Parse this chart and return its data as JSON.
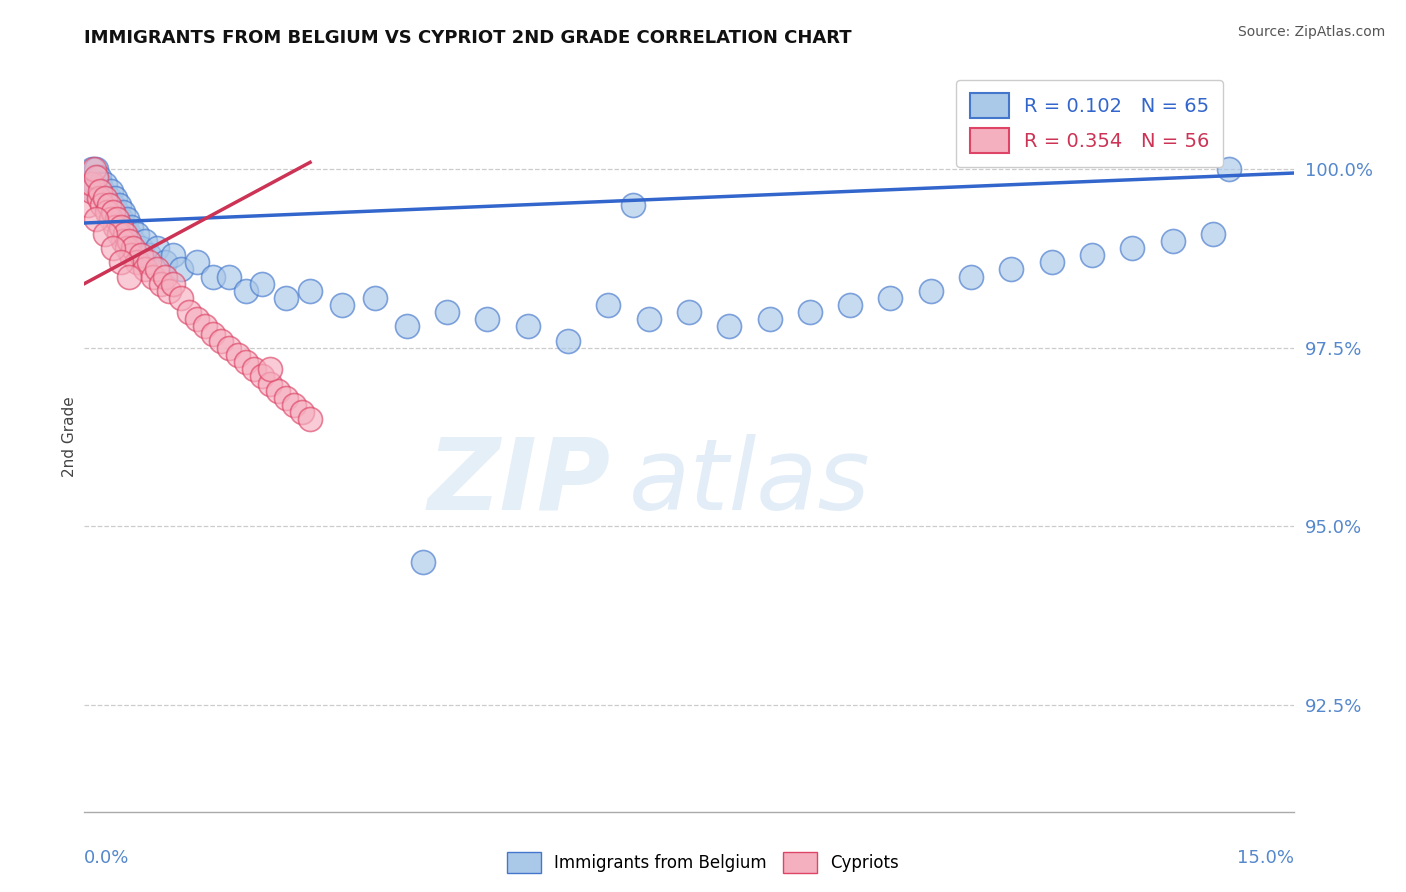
{
  "title": "IMMIGRANTS FROM BELGIUM VS CYPRIOT 2ND GRADE CORRELATION CHART",
  "source": "Source: ZipAtlas.com",
  "ylabel": "2nd Grade",
  "xmin": 0.0,
  "xmax": 15.0,
  "ymin": 91.0,
  "ymax": 101.5,
  "yticks": [
    92.5,
    95.0,
    97.5,
    100.0
  ],
  "ytick_labels": [
    "92.5%",
    "95.0%",
    "97.5%",
    "100.0%"
  ],
  "blue_R": 0.102,
  "blue_N": 65,
  "pink_R": 0.354,
  "pink_N": 56,
  "blue_scatter_color": "#aac8e8",
  "blue_edge_color": "#4477cc",
  "pink_scatter_color": "#f5b0c0",
  "pink_edge_color": "#dd4466",
  "blue_line_color": "#3366cc",
  "pink_line_color": "#cc3355",
  "legend_blue": "Immigrants from Belgium",
  "legend_pink": "Cypriots",
  "grid_color": "#cccccc",
  "tick_color": "#5588cc",
  "title_color": "#111111",
  "blue_trend_x0": 0.0,
  "blue_trend_y0": 99.25,
  "blue_trend_x1": 15.0,
  "blue_trend_y1": 99.95,
  "pink_trend_x0": 0.0,
  "pink_trend_y0": 98.4,
  "pink_trend_x1": 2.8,
  "pink_trend_y1": 100.1,
  "blue_x": [
    0.05,
    0.08,
    0.1,
    0.12,
    0.13,
    0.15,
    0.18,
    0.2,
    0.22,
    0.25,
    0.28,
    0.3,
    0.33,
    0.35,
    0.38,
    0.4,
    0.43,
    0.45,
    0.48,
    0.5,
    0.53,
    0.55,
    0.58,
    0.6,
    0.65,
    0.7,
    0.75,
    0.8,
    0.9,
    1.0,
    1.1,
    1.2,
    1.4,
    1.6,
    1.8,
    2.0,
    2.2,
    2.5,
    2.8,
    3.2,
    3.6,
    4.0,
    4.5,
    5.0,
    5.5,
    6.0,
    6.5,
    7.0,
    7.5,
    8.0,
    8.5,
    9.0,
    9.5,
    10.0,
    10.5,
    11.0,
    11.5,
    12.0,
    12.5,
    13.0,
    13.5,
    14.0,
    14.2,
    6.8,
    4.2
  ],
  "blue_y": [
    99.8,
    99.9,
    100.0,
    99.7,
    99.8,
    100.0,
    99.9,
    99.8,
    99.7,
    99.8,
    99.5,
    99.6,
    99.7,
    99.5,
    99.6,
    99.4,
    99.5,
    99.3,
    99.4,
    99.2,
    99.3,
    99.1,
    99.2,
    99.0,
    99.1,
    98.9,
    99.0,
    98.8,
    98.9,
    98.7,
    98.8,
    98.6,
    98.7,
    98.5,
    98.5,
    98.3,
    98.4,
    98.2,
    98.3,
    98.1,
    98.2,
    97.8,
    98.0,
    97.9,
    97.8,
    97.6,
    98.1,
    97.9,
    98.0,
    97.8,
    97.9,
    98.0,
    98.1,
    98.2,
    98.3,
    98.5,
    98.6,
    98.7,
    98.8,
    98.9,
    99.0,
    99.1,
    100.0,
    99.5,
    94.5
  ],
  "pink_x": [
    0.05,
    0.08,
    0.1,
    0.12,
    0.15,
    0.18,
    0.2,
    0.22,
    0.25,
    0.28,
    0.3,
    0.33,
    0.35,
    0.38,
    0.4,
    0.43,
    0.45,
    0.48,
    0.5,
    0.53,
    0.55,
    0.58,
    0.6,
    0.65,
    0.7,
    0.75,
    0.8,
    0.85,
    0.9,
    0.95,
    1.0,
    1.05,
    1.1,
    1.2,
    1.3,
    1.4,
    1.5,
    1.6,
    1.7,
    1.8,
    1.9,
    2.0,
    2.1,
    2.2,
    2.3,
    2.4,
    2.5,
    2.6,
    2.7,
    2.8,
    0.15,
    0.25,
    0.35,
    0.45,
    0.55,
    2.3
  ],
  "pink_y": [
    99.5,
    99.7,
    99.8,
    100.0,
    99.9,
    99.6,
    99.7,
    99.5,
    99.6,
    99.4,
    99.5,
    99.3,
    99.4,
    99.2,
    99.3,
    99.1,
    99.2,
    99.0,
    99.1,
    98.9,
    99.0,
    98.8,
    98.9,
    98.7,
    98.8,
    98.6,
    98.7,
    98.5,
    98.6,
    98.4,
    98.5,
    98.3,
    98.4,
    98.2,
    98.0,
    97.9,
    97.8,
    97.7,
    97.6,
    97.5,
    97.4,
    97.3,
    97.2,
    97.1,
    97.0,
    96.9,
    96.8,
    96.7,
    96.6,
    96.5,
    99.3,
    99.1,
    98.9,
    98.7,
    98.5,
    97.2
  ]
}
